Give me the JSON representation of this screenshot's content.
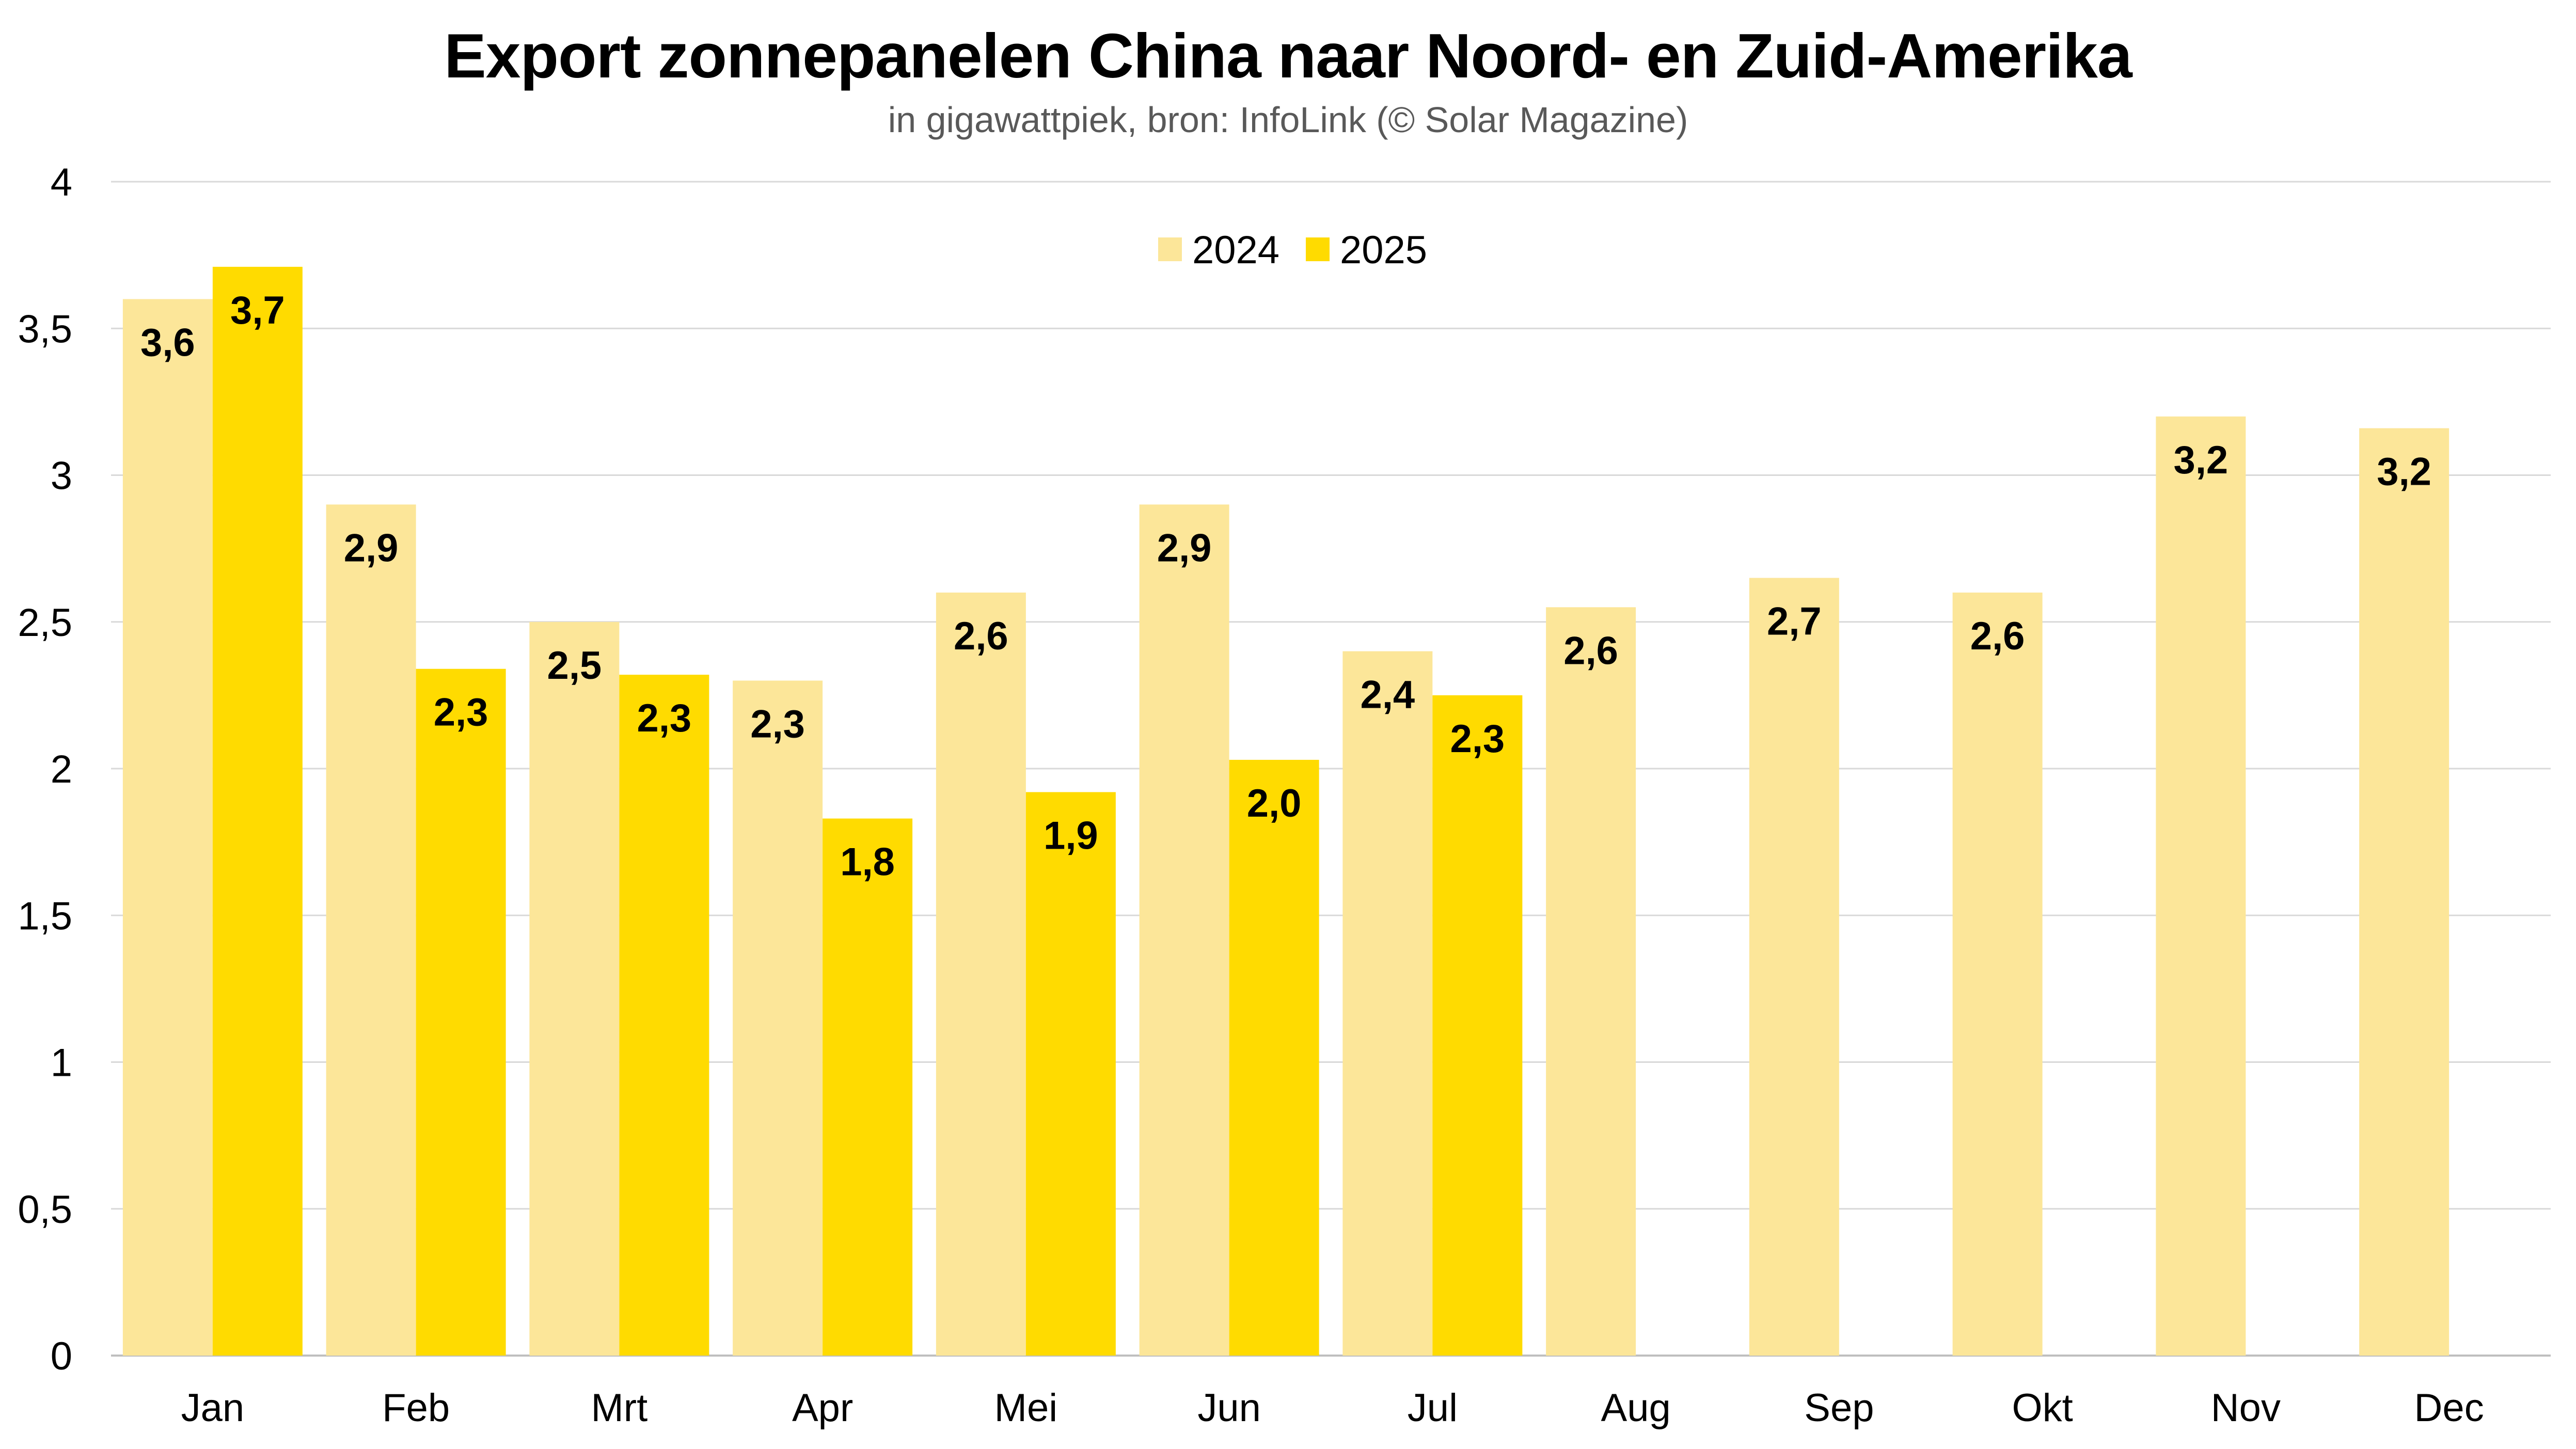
{
  "title": "Export zonnepanelen China naar Noord- en Zuid-Amerika",
  "subtitle": "in gigawattpiek, bron: InfoLink (© Solar Magazine)",
  "colors": {
    "series_2024": "#FCE699",
    "series_2025": "#FFDB00",
    "grid": "#d9d9d9",
    "axis": "#bfbfbf"
  },
  "chart_data": {
    "type": "bar",
    "title": "Export zonnepanelen China naar Noord- en Zuid-Amerika",
    "subtitle": "in gigawattpiek, bron: InfoLink (© Solar Magazine)",
    "categories": [
      "Jan",
      "Feb",
      "Mrt",
      "Apr",
      "Mei",
      "Jun",
      "Jul",
      "Aug",
      "Sep",
      "Okt",
      "Nov",
      "Dec"
    ],
    "series": [
      {
        "name": "2024",
        "color": "#FCE699",
        "values": [
          3.6,
          2.9,
          2.5,
          2.3,
          2.6,
          2.9,
          2.4,
          2.55,
          2.65,
          2.6,
          3.2,
          3.16
        ],
        "labels": [
          "3,6",
          "2,9",
          "2,5",
          "2,3",
          "2,6",
          "2,9",
          "2,4",
          "2,6",
          "2,7",
          "2,6",
          "3,2",
          "3,2"
        ]
      },
      {
        "name": "2025",
        "color": "#FFDB00",
        "values": [
          3.71,
          2.34,
          2.32,
          1.83,
          1.92,
          2.03,
          2.25,
          null,
          null,
          null,
          null,
          null
        ],
        "labels": [
          "3,7",
          "2,3",
          "2,3",
          "1,8",
          "1,9",
          "2,0",
          "2,3",
          null,
          null,
          null,
          null,
          null
        ]
      }
    ],
    "ylim": [
      0,
      4
    ],
    "yticks": [
      0,
      0.5,
      1,
      1.5,
      2,
      2.5,
      3,
      3.5,
      4
    ],
    "ytick_labels": [
      "0",
      "0,5",
      "1",
      "1,5",
      "2",
      "2,5",
      "3",
      "3,5",
      "4"
    ],
    "xlabel": "",
    "ylabel": "",
    "grid": true,
    "legend_position": "top-center"
  }
}
